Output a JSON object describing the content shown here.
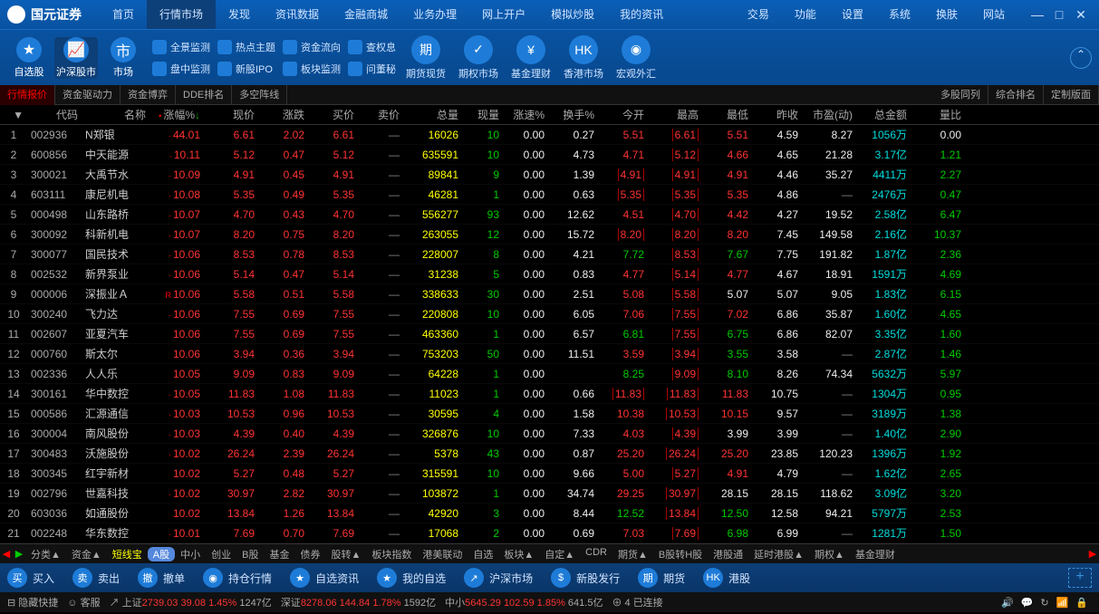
{
  "app": {
    "name": "国元证券",
    "sub": "GUOYUAN SECURITIES"
  },
  "topnav": [
    "首页",
    "行情市场",
    "发现",
    "资讯数据",
    "金融商城",
    "业务办理",
    "网上开户",
    "模拟炒股",
    "我的资讯"
  ],
  "topnav_right": [
    "交易",
    "功能",
    "设置",
    "系统",
    "换肤",
    "网站"
  ],
  "topnav_active": 1,
  "bigtools": [
    {
      "label": "自选股",
      "icon": "★"
    },
    {
      "label": "沪深股市",
      "icon": "📈"
    },
    {
      "label": "市场",
      "icon": "市"
    }
  ],
  "midtools": [
    {
      "l1": "全景监测",
      "l2": "盘中监测"
    },
    {
      "l1": "热点主题",
      "l2": "新股IPO"
    },
    {
      "l1": "资金流向",
      "l2": "板块监测"
    },
    {
      "l1": "查权息",
      "l2": "问董秘"
    }
  ],
  "roundtools": [
    {
      "label": "期货现货",
      "icon": "期"
    },
    {
      "label": "期权市场",
      "icon": "✓"
    },
    {
      "label": "基金理财",
      "icon": "¥"
    },
    {
      "label": "香港市场",
      "icon": "HK"
    },
    {
      "label": "宏观外汇",
      "icon": "◉"
    }
  ],
  "tabs": [
    "行情报价",
    "资金驱动力",
    "资金博弈",
    "DDE排名",
    "多空阵线"
  ],
  "tabs_right": [
    "多股同列",
    "综合排名",
    "定制版面"
  ],
  "columns": [
    "",
    "代码",
    "名称",
    "涨幅%",
    "现价",
    "涨跌",
    "买价",
    "卖价",
    "总量",
    "现量",
    "涨速%",
    "换手%",
    "今开",
    "最高",
    "最低",
    "昨收",
    "市盈(动)",
    "总金额",
    "量比"
  ],
  "colors": {
    "red": "#ff3333",
    "green": "#00cc00",
    "cyan": "#00dddd",
    "yellow": "#ffff00",
    "gray": "#888888",
    "white": "#eeeeee",
    "bg": "#000000"
  },
  "rows": [
    {
      "n": 1,
      "code": "002936",
      "name": "N郑银",
      "m": "·",
      "pct": "44.01",
      "price": "6.61",
      "chg": "2.02",
      "bid": "6.61",
      "ask": "—",
      "vol": "16026",
      "cur": "10",
      "spd": "0.00",
      "turn": "0.27",
      "open": "5.51",
      "high": "6.61",
      "low": "5.51",
      "prev": "4.59",
      "pe": "8.27",
      "amt": "1056万",
      "vr": "0.00",
      "curC": "green",
      "openB": 0,
      "highB": 1,
      "amtC": "cyan",
      "vrC": "white",
      "peC": "white"
    },
    {
      "n": 2,
      "code": "600856",
      "name": "中天能源",
      "m": "·",
      "pct": "10.11",
      "price": "5.12",
      "chg": "0.47",
      "bid": "5.12",
      "ask": "—",
      "vol": "635591",
      "cur": "10",
      "spd": "0.00",
      "turn": "4.73",
      "open": "4.71",
      "high": "5.12",
      "low": "4.66",
      "prev": "4.65",
      "pe": "21.28",
      "amt": "3.17亿",
      "vr": "1.21",
      "curC": "green",
      "openB": 0,
      "highB": 1,
      "amtC": "cyan",
      "vrC": "green",
      "peC": "white"
    },
    {
      "n": 3,
      "code": "300021",
      "name": "大禹节水",
      "m": "·",
      "pct": "10.09",
      "price": "4.91",
      "chg": "0.45",
      "bid": "4.91",
      "ask": "—",
      "vol": "89841",
      "cur": "9",
      "spd": "0.00",
      "turn": "1.39",
      "open": "4.91",
      "high": "4.91",
      "low": "4.91",
      "prev": "4.46",
      "pe": "35.27",
      "amt": "4411万",
      "vr": "2.27",
      "curC": "green",
      "openB": 1,
      "highB": 1,
      "lowR": 1,
      "amtC": "cyan",
      "vrC": "green",
      "peC": "white"
    },
    {
      "n": 4,
      "code": "603111",
      "name": "康尼机电",
      "m": "·",
      "pct": "10.08",
      "price": "5.35",
      "chg": "0.49",
      "bid": "5.35",
      "ask": "—",
      "vol": "46281",
      "cur": "1",
      "spd": "0.00",
      "turn": "0.63",
      "open": "5.35",
      "high": "5.35",
      "low": "5.35",
      "prev": "4.86",
      "pe": "—",
      "amt": "2476万",
      "vr": "0.47",
      "curC": "green",
      "openB": 1,
      "highB": 1,
      "lowR": 1,
      "amtC": "cyan",
      "vrC": "green",
      "peC": "gray"
    },
    {
      "n": 5,
      "code": "000498",
      "name": "山东路桥",
      "m": "·",
      "pct": "10.07",
      "price": "4.70",
      "chg": "0.43",
      "bid": "4.70",
      "ask": "—",
      "vol": "556277",
      "cur": "93",
      "spd": "0.00",
      "turn": "12.62",
      "open": "4.51",
      "high": "4.70",
      "low": "4.42",
      "prev": "4.27",
      "pe": "19.52",
      "amt": "2.58亿",
      "vr": "6.47",
      "curC": "green",
      "openB": 0,
      "highB": 1,
      "amtC": "cyan",
      "vrC": "green",
      "peC": "white"
    },
    {
      "n": 6,
      "code": "300092",
      "name": "科新机电",
      "m": "·",
      "pct": "10.07",
      "price": "8.20",
      "chg": "0.75",
      "bid": "8.20",
      "ask": "—",
      "vol": "263055",
      "cur": "12",
      "spd": "0.00",
      "turn": "15.72",
      "open": "8.20",
      "high": "8.20",
      "low": "8.20",
      "prev": "7.45",
      "pe": "149.58",
      "amt": "2.16亿",
      "vr": "10.37",
      "curC": "green",
      "openB": 1,
      "highB": 1,
      "lowR": 1,
      "amtC": "cyan",
      "vrC": "green",
      "peC": "white"
    },
    {
      "n": 7,
      "code": "300077",
      "name": "国民技术",
      "m": "·",
      "pct": "10.06",
      "price": "8.53",
      "chg": "0.78",
      "bid": "8.53",
      "ask": "—",
      "vol": "228007",
      "cur": "8",
      "spd": "0.00",
      "turn": "4.21",
      "open": "7.72",
      "high": "8.53",
      "low": "7.67",
      "prev": "7.75",
      "pe": "191.82",
      "amt": "1.87亿",
      "vr": "2.36",
      "curC": "green",
      "openB": 0,
      "highB": 1,
      "openC": "green",
      "lowC": "green",
      "amtC": "cyan",
      "vrC": "green",
      "peC": "white"
    },
    {
      "n": 8,
      "code": "002532",
      "name": "新界泵业",
      "m": "·",
      "pct": "10.06",
      "price": "5.14",
      "chg": "0.47",
      "bid": "5.14",
      "ask": "—",
      "vol": "31238",
      "cur": "5",
      "spd": "0.00",
      "turn": "0.83",
      "open": "4.77",
      "high": "5.14",
      "low": "4.77",
      "prev": "4.67",
      "pe": "18.91",
      "amt": "1591万",
      "vr": "4.69",
      "curC": "green",
      "openB": 0,
      "highB": 1,
      "amtC": "cyan",
      "vrC": "green",
      "peC": "white"
    },
    {
      "n": 9,
      "code": "000006",
      "name": "深振业Ａ",
      "m": "R",
      "pct": "10.06",
      "price": "5.58",
      "chg": "0.51",
      "bid": "5.58",
      "ask": "—",
      "vol": "338633",
      "cur": "30",
      "spd": "0.00",
      "turn": "2.51",
      "open": "5.08",
      "high": "5.58",
      "low": "5.07",
      "prev": "5.07",
      "pe": "9.05",
      "amt": "1.83亿",
      "vr": "6.15",
      "curC": "green",
      "openB": 0,
      "highB": 1,
      "lowC": "white",
      "amtC": "cyan",
      "vrC": "green",
      "peC": "white"
    },
    {
      "n": 10,
      "code": "300240",
      "name": "飞力达",
      "m": "·",
      "pct": "10.06",
      "price": "7.55",
      "chg": "0.69",
      "bid": "7.55",
      "ask": "—",
      "vol": "220808",
      "cur": "10",
      "spd": "0.00",
      "turn": "6.05",
      "open": "7.06",
      "high": "7.55",
      "low": "7.02",
      "prev": "6.86",
      "pe": "35.87",
      "amt": "1.60亿",
      "vr": "4.65",
      "curC": "green",
      "openB": 0,
      "highB": 1,
      "amtC": "cyan",
      "vrC": "green",
      "peC": "white"
    },
    {
      "n": 11,
      "code": "002607",
      "name": "亚夏汽车",
      "m": "",
      "pct": "10.06",
      "price": "7.55",
      "chg": "0.69",
      "bid": "7.55",
      "ask": "—",
      "vol": "463360",
      "cur": "1",
      "spd": "0.00",
      "turn": "6.57",
      "open": "6.81",
      "high": "7.55",
      "low": "6.75",
      "prev": "6.86",
      "pe": "82.07",
      "amt": "3.35亿",
      "vr": "1.60",
      "curC": "green",
      "openB": 0,
      "highB": 1,
      "openC": "green",
      "lowC": "green",
      "amtC": "cyan",
      "vrC": "green",
      "peC": "white"
    },
    {
      "n": 12,
      "code": "000760",
      "name": "斯太尔",
      "m": "",
      "pct": "10.06",
      "price": "3.94",
      "chg": "0.36",
      "bid": "3.94",
      "ask": "—",
      "vol": "753203",
      "cur": "50",
      "spd": "0.00",
      "turn": "11.51",
      "open": "3.59",
      "high": "3.94",
      "low": "3.55",
      "prev": "3.58",
      "pe": "—",
      "amt": "2.87亿",
      "vr": "1.46",
      "curC": "green",
      "openB": 0,
      "highB": 1,
      "lowC": "green",
      "amtC": "cyan",
      "vrC": "green",
      "peC": "gray"
    },
    {
      "n": 13,
      "code": "002336",
      "name": "人人乐",
      "m": "",
      "pct": "10.05",
      "price": "9.09",
      "chg": "0.83",
      "bid": "9.09",
      "ask": "—",
      "vol": "64228",
      "cur": "1",
      "spd": "0.00",
      "turn": "",
      "open": "8.25",
      "high": "9.09",
      "low": "8.10",
      "prev": "8.26",
      "pe": "74.34",
      "amt": "5632万",
      "vr": "5.97",
      "curC": "green",
      "openB": 0,
      "highB": 1,
      "openC": "green",
      "lowC": "green",
      "amtC": "cyan",
      "vrC": "green",
      "peC": "white"
    },
    {
      "n": 14,
      "code": "300161",
      "name": "华中数控",
      "m": "·",
      "pct": "10.05",
      "price": "11.83",
      "chg": "1.08",
      "bid": "11.83",
      "ask": "—",
      "vol": "11023",
      "cur": "1",
      "spd": "0.00",
      "turn": "0.66",
      "open": "11.83",
      "high": "11.83",
      "low": "11.83",
      "prev": "10.75",
      "pe": "—",
      "amt": "1304万",
      "vr": "0.95",
      "curC": "green",
      "openB": 1,
      "highB": 1,
      "lowR": 1,
      "amtC": "cyan",
      "vrC": "green",
      "peC": "gray"
    },
    {
      "n": 15,
      "code": "000586",
      "name": "汇源通信",
      "m": "·",
      "pct": "10.03",
      "price": "10.53",
      "chg": "0.96",
      "bid": "10.53",
      "ask": "—",
      "vol": "30595",
      "cur": "4",
      "spd": "0.00",
      "turn": "1.58",
      "open": "10.38",
      "high": "10.53",
      "low": "10.15",
      "prev": "9.57",
      "pe": "—",
      "amt": "3189万",
      "vr": "1.38",
      "curC": "green",
      "openB": 0,
      "highB": 1,
      "amtC": "cyan",
      "vrC": "green",
      "peC": "gray"
    },
    {
      "n": 16,
      "code": "300004",
      "name": "南风股份",
      "m": "·",
      "pct": "10.03",
      "price": "4.39",
      "chg": "0.40",
      "bid": "4.39",
      "ask": "—",
      "vol": "326876",
      "cur": "10",
      "spd": "0.00",
      "turn": "7.33",
      "open": "4.03",
      "high": "4.39",
      "low": "3.99",
      "prev": "3.99",
      "pe": "—",
      "amt": "1.40亿",
      "vr": "2.90",
      "curC": "green",
      "openB": 0,
      "highB": 1,
      "lowC": "white",
      "amtC": "cyan",
      "vrC": "green",
      "peC": "gray"
    },
    {
      "n": 17,
      "code": "300483",
      "name": "沃施股份",
      "m": "·",
      "pct": "10.02",
      "price": "26.24",
      "chg": "2.39",
      "bid": "26.24",
      "ask": "—",
      "vol": "5378",
      "cur": "43",
      "spd": "0.00",
      "turn": "0.87",
      "open": "25.20",
      "high": "26.24",
      "low": "25.20",
      "prev": "23.85",
      "pe": "120.23",
      "amt": "1396万",
      "vr": "1.92",
      "curC": "green",
      "openB": 0,
      "highB": 1,
      "amtC": "cyan",
      "vrC": "green",
      "peC": "white"
    },
    {
      "n": 18,
      "code": "300345",
      "name": "红宇新材",
      "m": "",
      "pct": "10.02",
      "price": "5.27",
      "chg": "0.48",
      "bid": "5.27",
      "ask": "—",
      "vol": "315591",
      "cur": "10",
      "spd": "0.00",
      "turn": "9.66",
      "open": "5.00",
      "high": "5.27",
      "low": "4.91",
      "prev": "4.79",
      "pe": "—",
      "amt": "1.62亿",
      "vr": "2.65",
      "curC": "green",
      "openB": 0,
      "highB": 1,
      "amtC": "cyan",
      "vrC": "green",
      "peC": "gray"
    },
    {
      "n": 19,
      "code": "002796",
      "name": "世嘉科技",
      "m": "·",
      "pct": "10.02",
      "price": "30.97",
      "chg": "2.82",
      "bid": "30.97",
      "ask": "—",
      "vol": "103872",
      "cur": "1",
      "spd": "0.00",
      "turn": "34.74",
      "open": "29.25",
      "high": "30.97",
      "low": "28.15",
      "prev": "28.15",
      "pe": "118.62",
      "amt": "3.09亿",
      "vr": "3.20",
      "curC": "green",
      "openB": 0,
      "highB": 1,
      "lowC": "white",
      "amtC": "cyan",
      "vrC": "green",
      "peC": "white"
    },
    {
      "n": 20,
      "code": "603036",
      "name": "如通股份",
      "m": "",
      "pct": "10.02",
      "price": "13.84",
      "chg": "1.26",
      "bid": "13.84",
      "ask": "—",
      "vol": "42920",
      "cur": "3",
      "spd": "0.00",
      "turn": "8.44",
      "open": "12.52",
      "high": "13.84",
      "low": "12.50",
      "prev": "12.58",
      "pe": "94.21",
      "amt": "5797万",
      "vr": "2.53",
      "curC": "green",
      "openB": 0,
      "highB": 1,
      "openC": "green",
      "lowC": "green",
      "amtC": "cyan",
      "vrC": "green",
      "peC": "white"
    },
    {
      "n": 21,
      "code": "002248",
      "name": "华东数控",
      "m": "·",
      "pct": "10.01",
      "price": "7.69",
      "chg": "0.70",
      "bid": "7.69",
      "ask": "—",
      "vol": "17068",
      "cur": "2",
      "spd": "0.00",
      "turn": "0.69",
      "open": "7.03",
      "high": "7.69",
      "low": "6.98",
      "prev": "6.99",
      "pe": "—",
      "amt": "1281万",
      "vr": "1.50",
      "curC": "green",
      "openB": 0,
      "highB": 1,
      "lowC": "green",
      "amtC": "cyan",
      "vrC": "green",
      "peC": "gray"
    }
  ],
  "bottomtabs": [
    "分类▲",
    "资金▲",
    "短线宝",
    "A股",
    "中小",
    "创业",
    "B股",
    "基金",
    "债券",
    "股转▲",
    "板块指数",
    "港美联动",
    "自选",
    "板块▲",
    "自定▲",
    "CDR",
    "期货▲",
    "B股转H股",
    "港股通",
    "延时港股▲",
    "期权▲",
    "基金理财"
  ],
  "actions": [
    {
      "label": "买入",
      "icon": "买"
    },
    {
      "label": "卖出",
      "icon": "卖"
    },
    {
      "label": "撤单",
      "icon": "撤"
    },
    {
      "label": "持仓行情",
      "icon": "◉"
    },
    {
      "label": "自选资讯",
      "icon": "★"
    },
    {
      "label": "我的自选",
      "icon": "★"
    },
    {
      "label": "沪深市场",
      "icon": "↗"
    },
    {
      "label": "新股发行",
      "icon": "$"
    },
    {
      "label": "期货",
      "icon": "期"
    },
    {
      "label": "港股",
      "icon": "HK"
    }
  ],
  "status": {
    "hide": "隐藏快捷",
    "kf": "客服",
    "sh": {
      "label": "上证",
      "v": "2739.03",
      "chg": "39.08",
      "pct": "1.45%",
      "amt": "1247亿"
    },
    "sz": {
      "label": "深证",
      "v": "8278.06",
      "chg": "144.84",
      "pct": "1.78%",
      "amt": "1592亿"
    },
    "zx": {
      "label": "中小",
      "v": "5645.29",
      "chg": "102.59",
      "pct": "1.85%",
      "amt": "641.5亿"
    },
    "conn": "已连接"
  }
}
